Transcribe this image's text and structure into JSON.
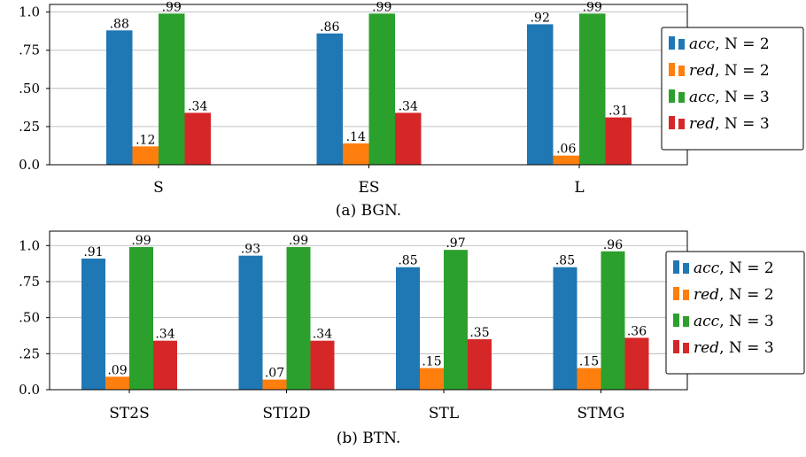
{
  "colors": {
    "acc_n2": "#1f77b4",
    "red_n2": "#ff7f0e",
    "acc_n3": "#2ca02c",
    "red_n3": "#d62728"
  },
  "chart_data": [
    {
      "type": "bar",
      "caption": "(a) BGN.",
      "categories": [
        "S",
        "ES",
        "L"
      ],
      "ylim": [
        0,
        1.05
      ],
      "yticks": [
        0,
        0.25,
        0.5,
        0.75,
        1.0
      ],
      "yticklabels": [
        "0.0",
        ".25",
        ".50",
        ".75",
        "1.0"
      ],
      "grid": "horizontal",
      "legend_position": "right",
      "series": [
        {
          "name_prefix": "acc",
          "name_suffix": ", N = 2",
          "color": "#1f77b4",
          "values": [
            0.88,
            0.86,
            0.92
          ],
          "labels": [
            ".88",
            ".86",
            ".92"
          ]
        },
        {
          "name_prefix": "red",
          "name_suffix": ", N = 2",
          "color": "#ff7f0e",
          "values": [
            0.12,
            0.14,
            0.06
          ],
          "labels": [
            ".12",
            ".14",
            ".06"
          ]
        },
        {
          "name_prefix": "acc",
          "name_suffix": ", N = 3",
          "color": "#2ca02c",
          "values": [
            0.99,
            0.99,
            0.99
          ],
          "labels": [
            ".99",
            ".99",
            ".99"
          ]
        },
        {
          "name_prefix": "red",
          "name_suffix": ", N = 3",
          "color": "#d62728",
          "values": [
            0.34,
            0.34,
            0.31
          ],
          "labels": [
            ".34",
            ".34",
            ".31"
          ]
        }
      ]
    },
    {
      "type": "bar",
      "caption": "(b) BTN.",
      "categories": [
        "ST2S",
        "STI2D",
        "STL",
        "STMG"
      ],
      "ylim": [
        0,
        1.1
      ],
      "yticks": [
        0,
        0.25,
        0.5,
        0.75,
        1.0
      ],
      "yticklabels": [
        "0.0",
        ".25",
        ".50",
        ".75",
        "1.0"
      ],
      "grid": "horizontal",
      "legend_position": "right",
      "series": [
        {
          "name_prefix": "acc",
          "name_suffix": ", N = 2",
          "color": "#1f77b4",
          "values": [
            0.91,
            0.93,
            0.85,
            0.85
          ],
          "labels": [
            ".91",
            ".93",
            ".85",
            ".85"
          ]
        },
        {
          "name_prefix": "red",
          "name_suffix": ", N = 2",
          "color": "#ff7f0e",
          "values": [
            0.09,
            0.07,
            0.15,
            0.15
          ],
          "labels": [
            ".09",
            ".07",
            ".15",
            ".15"
          ]
        },
        {
          "name_prefix": "acc",
          "name_suffix": ", N = 3",
          "color": "#2ca02c",
          "values": [
            0.99,
            0.99,
            0.97,
            0.96
          ],
          "labels": [
            ".99",
            ".99",
            ".97",
            ".96"
          ]
        },
        {
          "name_prefix": "red",
          "name_suffix": ", N = 3",
          "color": "#d62728",
          "values": [
            0.34,
            0.34,
            0.35,
            0.36
          ],
          "labels": [
            ".34",
            ".34",
            ".35",
            ".36"
          ]
        }
      ]
    }
  ]
}
